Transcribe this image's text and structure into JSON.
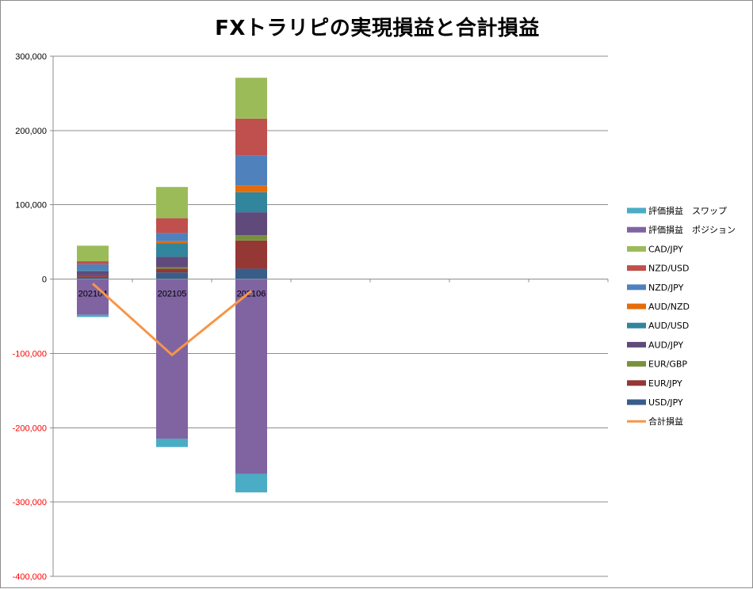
{
  "chart_data": {
    "type": "bar",
    "stacked": true,
    "title": "FXトラリピの実現損益と合計損益",
    "categories": [
      "202104",
      "202105",
      "202106"
    ],
    "ylim": [
      -400000,
      300000
    ],
    "yticks": [
      {
        "value": 300000,
        "label": "300,000"
      },
      {
        "value": 200000,
        "label": "200,000"
      },
      {
        "value": 100000,
        "label": "100,000"
      },
      {
        "value": 0,
        "label": "0"
      },
      {
        "value": -100000,
        "label": "-100,000"
      },
      {
        "value": -200000,
        "label": "-200,000"
      },
      {
        "value": -300000,
        "label": "-300,000"
      },
      {
        "value": -400000,
        "label": "-400,000"
      }
    ],
    "negative_tick_color": "#ff0000",
    "grid": true,
    "legend_position": "right",
    "series": [
      {
        "name": "USD/JPY",
        "color": "#385d8a",
        "values": [
          3000,
          9000,
          14000
        ]
      },
      {
        "name": "EUR/JPY",
        "color": "#953735",
        "values": [
          2000,
          5000,
          38000
        ]
      },
      {
        "name": "EUR/GBP",
        "color": "#76923c",
        "values": [
          0,
          2000,
          7000
        ]
      },
      {
        "name": "AUD/JPY",
        "color": "#604a7b",
        "values": [
          6000,
          14000,
          31000
        ]
      },
      {
        "name": "AUD/USD",
        "color": "#31859c",
        "values": [
          1000,
          18000,
          27000
        ]
      },
      {
        "name": "AUD/NZD",
        "color": "#e46c0a",
        "values": [
          0,
          3000,
          9000
        ]
      },
      {
        "name": "NZD/JPY",
        "color": "#4f81bd",
        "values": [
          8000,
          11000,
          40000
        ]
      },
      {
        "name": "NZD/USD",
        "color": "#c0504d",
        "values": [
          4000,
          20000,
          50000
        ]
      },
      {
        "name": "CAD/JPY",
        "color": "#9bbb59",
        "values": [
          21000,
          42000,
          55000
        ]
      },
      {
        "name": "評価損益　ポジション",
        "color": "#8064a2",
        "values": [
          -48000,
          -215000,
          -262000
        ]
      },
      {
        "name": "評価損益　スワップ",
        "color": "#4bacc6",
        "values": [
          -3000,
          -11000,
          -25000
        ]
      }
    ],
    "line_series": {
      "name": "合計損益",
      "color": "#f79646",
      "values": [
        -6000,
        -102000,
        -16000
      ]
    },
    "legend_order": [
      "評価損益　スワップ",
      "評価損益　ポジション",
      "CAD/JPY",
      "NZD/USD",
      "NZD/JPY",
      "AUD/NZD",
      "AUD/USD",
      "AUD/JPY",
      "EUR/GBP",
      "EUR/JPY",
      "USD/JPY",
      "合計損益"
    ]
  }
}
